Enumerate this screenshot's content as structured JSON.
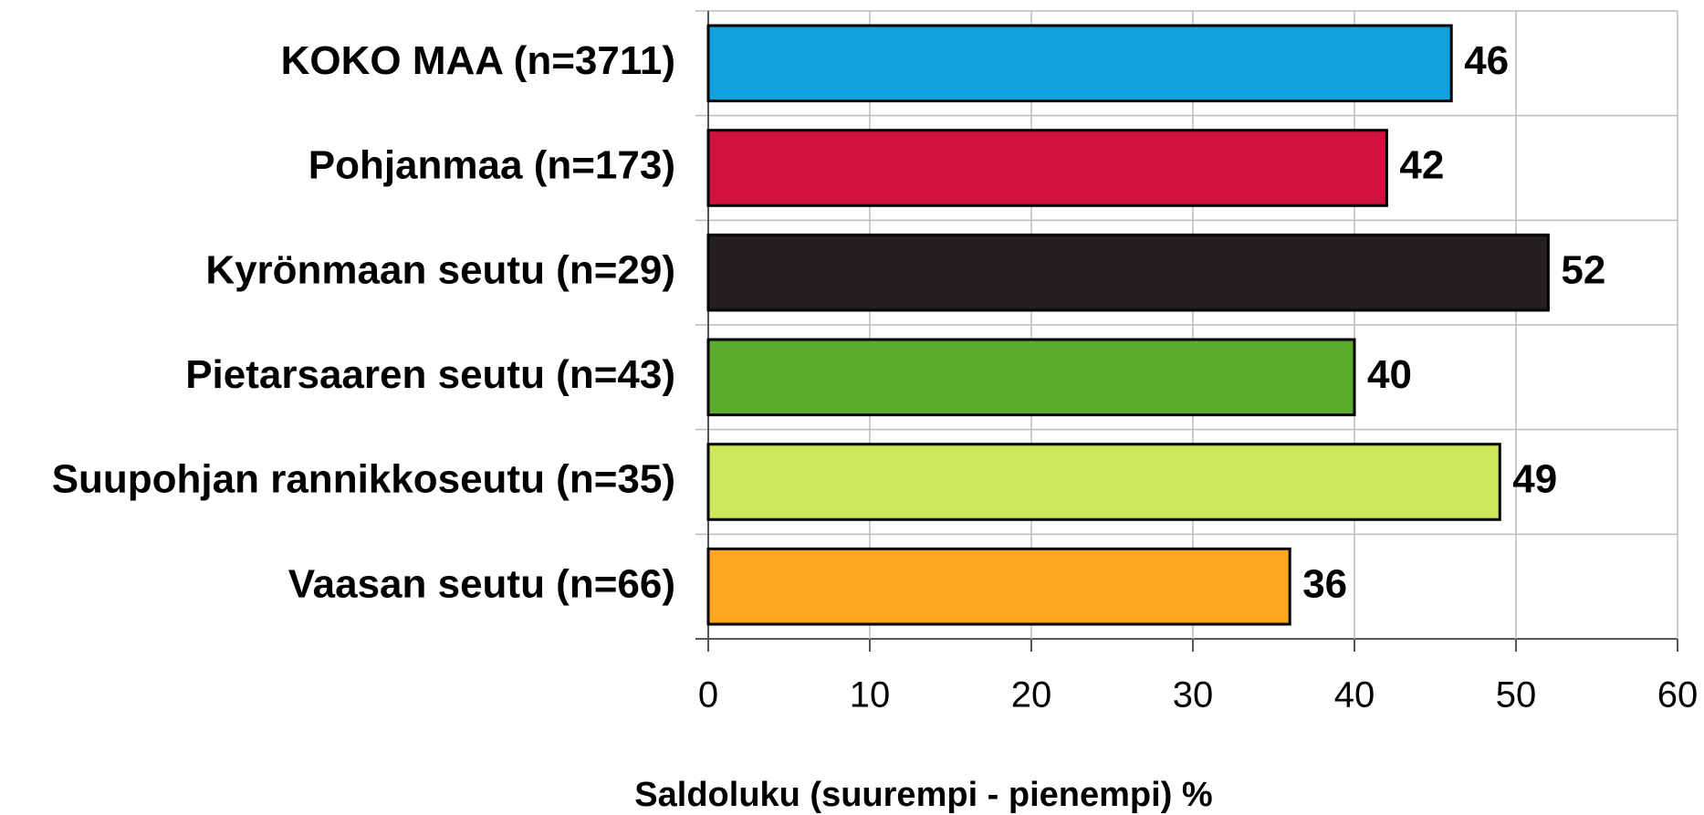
{
  "chart_data": {
    "type": "bar",
    "orientation": "horizontal",
    "categories": [
      "KOKO MAA (n=3711)",
      "Pohjanmaa (n=173)",
      "Kyrönmaan seutu (n=29)",
      "Pietarsaaren seutu (n=43)",
      "Suupohjan rannikkoseutu (n=35)",
      "Vaasan seutu (n=66)"
    ],
    "values": [
      46,
      42,
      52,
      40,
      49,
      36
    ],
    "colors": [
      "#10a2dc",
      "#d21140",
      "#231f20",
      "#5aab2e",
      "#cde85a",
      "#ffa520"
    ],
    "xlabel": "Saldoluku (suurempi - pienempi) %",
    "xlim": [
      0,
      60
    ],
    "xticks": [
      0,
      10,
      20,
      30,
      40,
      50,
      60
    ],
    "grid": true
  }
}
